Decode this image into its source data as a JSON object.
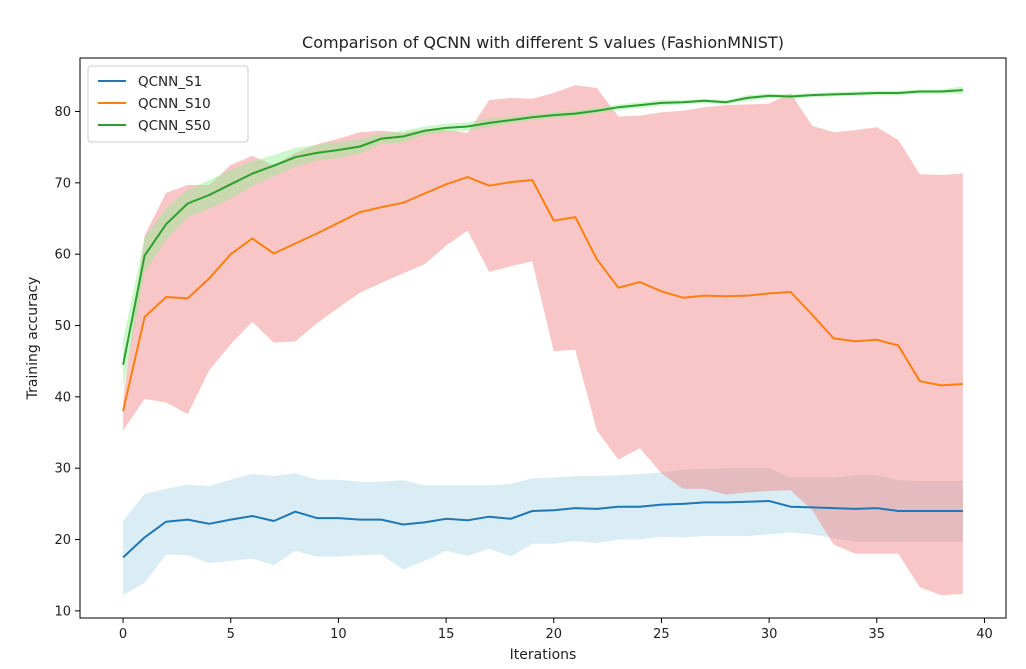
{
  "chart_data": {
    "type": "line",
    "title": "Comparison of QCNN with different S values (FashionMNIST)",
    "xlabel": "Iterations",
    "ylabel": "Training accuracy",
    "xlim": [
      -2,
      41
    ],
    "ylim": [
      9,
      87.5
    ],
    "x_ticks": [
      0,
      5,
      10,
      15,
      20,
      25,
      30,
      35,
      40
    ],
    "y_ticks": [
      10,
      20,
      30,
      40,
      50,
      60,
      70,
      80
    ],
    "grid": false,
    "legend_position": "top-left",
    "x": [
      0,
      1,
      2,
      3,
      4,
      5,
      6,
      7,
      8,
      9,
      10,
      11,
      12,
      13,
      14,
      15,
      16,
      17,
      18,
      19,
      20,
      21,
      22,
      23,
      24,
      25,
      26,
      27,
      28,
      29,
      30,
      31,
      32,
      33,
      34,
      35,
      36,
      37,
      38,
      39
    ],
    "series": [
      {
        "name": "QCNN_S1",
        "color": "#1f77b4",
        "band_color": "#add8e6",
        "values": [
          17.5,
          20.3,
          22.5,
          22.8,
          22.2,
          22.8,
          23.3,
          22.6,
          23.9,
          23.0,
          23.0,
          22.8,
          22.8,
          22.1,
          22.4,
          22.9,
          22.7,
          23.2,
          22.9,
          24.0,
          24.1,
          24.4,
          24.3,
          24.6,
          24.6,
          24.9,
          25.0,
          25.2,
          25.2,
          25.3,
          25.4,
          24.6,
          24.5,
          24.4,
          24.3,
          24.4,
          24.0,
          24.0,
          24.0,
          24.0
        ],
        "upper": [
          22.6,
          26.4,
          27.1,
          27.7,
          27.5,
          28.4,
          29.2,
          28.9,
          29.3,
          28.4,
          28.4,
          28.1,
          28.1,
          28.3,
          27.6,
          27.6,
          27.6,
          27.6,
          27.8,
          28.6,
          28.7,
          28.9,
          28.9,
          29.0,
          29.2,
          29.4,
          29.8,
          29.9,
          30.0,
          30.0,
          30.0,
          28.7,
          28.7,
          28.7,
          29.0,
          29.0,
          28.3,
          28.2,
          28.2,
          28.2
        ],
        "lower": [
          12.2,
          13.9,
          17.9,
          17.8,
          16.7,
          17.0,
          17.3,
          16.4,
          18.4,
          17.6,
          17.6,
          17.8,
          17.9,
          15.8,
          17.0,
          18.4,
          17.7,
          18.7,
          17.6,
          19.4,
          19.4,
          19.8,
          19.5,
          20.0,
          20.0,
          20.4,
          20.3,
          20.5,
          20.5,
          20.5,
          20.7,
          21.0,
          20.7,
          20.2,
          19.7,
          19.7,
          19.7,
          19.7,
          19.7,
          19.7
        ]
      },
      {
        "name": "QCNN_S10",
        "color": "#ff7f0e",
        "band_color": "#f08080",
        "values": [
          38.0,
          51.2,
          54.0,
          53.8,
          56.6,
          60.0,
          62.2,
          60.1,
          61.5,
          62.9,
          64.4,
          65.9,
          66.6,
          67.2,
          68.5,
          69.8,
          70.8,
          69.6,
          70.1,
          70.4,
          64.7,
          65.2,
          59.3,
          55.3,
          56.1,
          54.8,
          53.9,
          54.2,
          54.1,
          54.2,
          54.5,
          54.7,
          51.5,
          48.2,
          47.8,
          48.0,
          47.2,
          42.2,
          41.6,
          41.8
        ],
        "upper": [
          39.5,
          62.6,
          68.6,
          69.7,
          69.7,
          72.5,
          73.8,
          72.4,
          74.2,
          75.4,
          76.2,
          77.1,
          77.3,
          77.0,
          77.5,
          77.4,
          77.0,
          81.6,
          81.9,
          81.8,
          82.6,
          83.7,
          83.3,
          79.3,
          79.4,
          79.9,
          80.1,
          80.6,
          80.9,
          81.0,
          81.1,
          82.6,
          78.0,
          77.1,
          77.4,
          77.8,
          76.0,
          71.2,
          71.1,
          71.3
        ],
        "lower": [
          35.3,
          39.7,
          39.2,
          37.6,
          43.7,
          47.4,
          50.5,
          47.6,
          47.8,
          50.3,
          52.5,
          54.6,
          56.0,
          57.3,
          58.6,
          61.2,
          63.3,
          57.5,
          58.3,
          59.0,
          46.4,
          46.6,
          35.3,
          31.2,
          32.8,
          29.3,
          27.1,
          27.1,
          26.3,
          26.6,
          26.8,
          26.9,
          24.1,
          19.3,
          18.0,
          18.0,
          18.0,
          13.3,
          12.2,
          12.4
        ]
      },
      {
        "name": "QCNN_S50",
        "color": "#2ca02c",
        "band_color": "#90ee90",
        "values": [
          44.5,
          59.8,
          64.2,
          67.1,
          68.3,
          69.8,
          71.3,
          72.4,
          73.6,
          74.2,
          74.6,
          75.1,
          76.2,
          76.5,
          77.3,
          77.7,
          77.9,
          78.4,
          78.8,
          79.2,
          79.5,
          79.7,
          80.1,
          80.6,
          80.9,
          81.2,
          81.3,
          81.5,
          81.3,
          81.9,
          82.2,
          82.1,
          82.3,
          82.4,
          82.5,
          82.6,
          82.6,
          82.8,
          82.8,
          83.0
        ],
        "upper": [
          48.0,
          62.3,
          66.4,
          69.0,
          70.4,
          71.8,
          73.0,
          73.9,
          74.9,
          75.3,
          75.7,
          76.1,
          76.9,
          77.3,
          77.9,
          78.3,
          78.5,
          79.0,
          79.3,
          79.6,
          79.9,
          80.1,
          80.5,
          81.0,
          81.3,
          81.6,
          81.6,
          81.8,
          81.6,
          82.3,
          82.5,
          82.4,
          82.6,
          82.7,
          82.8,
          82.9,
          82.9,
          83.1,
          83.1,
          83.5
        ],
        "lower": [
          41.0,
          57.5,
          62.0,
          65.2,
          66.4,
          67.8,
          69.6,
          70.9,
          72.3,
          73.1,
          73.5,
          74.1,
          75.5,
          75.7,
          76.7,
          77.1,
          77.3,
          77.8,
          78.3,
          78.8,
          79.1,
          79.3,
          79.7,
          80.2,
          80.5,
          80.8,
          81.0,
          81.2,
          81.0,
          81.5,
          81.9,
          81.8,
          82.0,
          82.1,
          82.2,
          82.3,
          82.3,
          82.5,
          82.5,
          82.5
        ]
      }
    ]
  }
}
